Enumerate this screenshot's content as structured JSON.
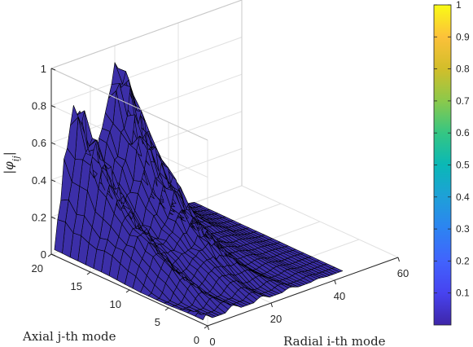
{
  "chart_data": {
    "type": "surface",
    "title": "",
    "xlabel": "Radial i-th mode",
    "ylabel": "Axial j-th mode",
    "zlabel": "|φij|",
    "zlabel_parts": {
      "bar": "|",
      "phi": "φ",
      "sub": "ij",
      "bar_end": "|"
    },
    "xlim": [
      0,
      60
    ],
    "ylim": [
      0,
      20
    ],
    "zlim": [
      0,
      1
    ],
    "x_ticks": [
      0,
      20,
      40,
      60
    ],
    "y_ticks": [
      0,
      5,
      10,
      15,
      20
    ],
    "z_ticks": [
      0,
      0.2,
      0.4,
      0.6,
      0.8,
      1
    ],
    "x_tick_labels": [
      "0",
      "20",
      "40",
      "60"
    ],
    "y_tick_labels": [
      "0",
      "5",
      "10",
      "15",
      "20"
    ],
    "z_tick_labels": [
      "0",
      "0.2",
      "0.4",
      "0.6",
      "0.8",
      "1"
    ],
    "surface_color": "#3c2fa8",
    "edge_color": "#000000",
    "grid": true,
    "grid_extent": {
      "i_max": 45,
      "j_min": 1,
      "j_max": 20
    },
    "peaks": [
      {
        "i": 7,
        "j": 19,
        "value": 0.85,
        "description": "first ridge peak"
      },
      {
        "i": 20,
        "j": 20,
        "value": 1.0,
        "description": "global peak"
      }
    ],
    "colorbar": {
      "ticks": [
        0.1,
        0.2,
        0.3,
        0.4,
        0.5,
        0.6,
        0.7,
        0.8,
        0.9,
        1
      ],
      "tick_labels": [
        "0.1",
        "0.2",
        "0.3",
        "0.4",
        "0.5",
        "0.6",
        "0.7",
        "0.8",
        "0.9",
        "1"
      ],
      "range": [
        0.0,
        1.0
      ],
      "colormap": "parula"
    }
  }
}
